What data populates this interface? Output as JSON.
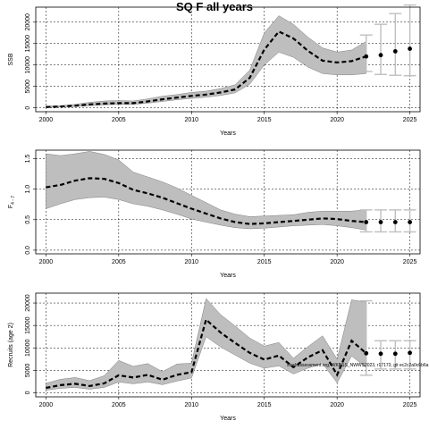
{
  "figure": {
    "title": "SQ F all years",
    "annotation": "stockassessment.org, WKBSS_NWWS2023, r17173, git ec2c2a0c6b6a"
  },
  "chart_data": [
    {
      "id": "ssb",
      "type": "area",
      "xlabel": "Years",
      "ylabel": "SSB",
      "xlim": [
        1999.3,
        2025.7
      ],
      "ylim": [
        -900,
        23500
      ],
      "xticks": [
        2000,
        2005,
        2010,
        2015,
        2020,
        2025
      ],
      "yticks": [
        0,
        5000,
        10000,
        15000,
        20000
      ],
      "grid": true,
      "series": [
        {
          "x": [
            2000,
            2001,
            2002,
            2003,
            2004,
            2005,
            2006,
            2007,
            2008,
            2009,
            2010,
            2011,
            2012,
            2013,
            2014,
            2015,
            2016,
            2017,
            2018,
            2019,
            2020,
            2021,
            2022
          ],
          "values": [
            200,
            300,
            500,
            800,
            1000,
            1100,
            1100,
            1500,
            2000,
            2400,
            2800,
            3100,
            3600,
            4300,
            7000,
            13000,
            16500,
            15000,
            12500,
            10500,
            10000,
            10200,
            11000
          ],
          "lower": [
            100,
            200,
            300,
            500,
            700,
            800,
            800,
            1100,
            1500,
            1900,
            2200,
            2500,
            2900,
            3500,
            5500,
            10000,
            13000,
            11800,
            9500,
            8000,
            7700,
            7700,
            8000
          ],
          "upper": [
            400,
            500,
            800,
            1300,
            1600,
            1700,
            1600,
            2100,
            2700,
            3100,
            3600,
            3900,
            4500,
            5400,
            8800,
            17500,
            21500,
            19500,
            16500,
            14000,
            13000,
            13500,
            15500
          ],
          "median": [
            200,
            300,
            500,
            800,
            1000,
            1100,
            1100,
            1500,
            2000,
            2400,
            2800,
            3100,
            3600,
            4300,
            7000,
            13600,
            17800,
            16200,
            13300,
            11000,
            10600,
            10900,
            12000
          ]
        }
      ],
      "forecast": [
        {
          "x": 2022,
          "value": 12000,
          "low": 8500,
          "high": 17000
        },
        {
          "x": 2023,
          "value": 12300,
          "low": 7800,
          "high": 19500
        },
        {
          "x": 2024,
          "value": 13200,
          "low": 7600,
          "high": 22000
        },
        {
          "x": 2025,
          "value": 13800,
          "low": 7500,
          "high": 24000
        }
      ]
    },
    {
      "id": "fbar",
      "type": "area",
      "xlabel": "Years",
      "ylabel": "F",
      "ylabel_sub": "4 - 7",
      "xlim": [
        1999.3,
        2025.7
      ],
      "ylim": [
        -0.06,
        1.64
      ],
      "xticks": [
        2000,
        2005,
        2010,
        2015,
        2020,
        2025
      ],
      "yticks": [
        0.0,
        0.5,
        1.0,
        1.5
      ],
      "ytick_labels": [
        "0.0",
        "0.5",
        "1.0",
        "1.5"
      ],
      "grid": true,
      "series": [
        {
          "x": [
            2000,
            2001,
            2002,
            2003,
            2004,
            2005,
            2006,
            2007,
            2008,
            2009,
            2010,
            2011,
            2012,
            2013,
            2014,
            2015,
            2016,
            2017,
            2018,
            2019,
            2020,
            2021,
            2022
          ],
          "lower": [
            0.68,
            0.76,
            0.83,
            0.86,
            0.87,
            0.83,
            0.76,
            0.72,
            0.66,
            0.59,
            0.51,
            0.46,
            0.41,
            0.37,
            0.35,
            0.36,
            0.38,
            0.4,
            0.41,
            0.42,
            0.4,
            0.37,
            0.33
          ],
          "upper": [
            1.58,
            1.55,
            1.58,
            1.62,
            1.57,
            1.48,
            1.28,
            1.2,
            1.12,
            1.02,
            0.9,
            0.78,
            0.66,
            0.59,
            0.55,
            0.56,
            0.57,
            0.58,
            0.62,
            0.64,
            0.64,
            0.64,
            0.66
          ],
          "median": [
            1.03,
            1.07,
            1.14,
            1.18,
            1.17,
            1.1,
            0.99,
            0.93,
            0.86,
            0.77,
            0.68,
            0.6,
            0.52,
            0.46,
            0.43,
            0.44,
            0.46,
            0.48,
            0.5,
            0.52,
            0.51,
            0.48,
            0.46
          ]
        }
      ],
      "forecast": [
        {
          "x": 2022,
          "value": 0.46,
          "low": 0.3,
          "high": 0.66
        },
        {
          "x": 2023,
          "value": 0.46,
          "low": 0.3,
          "high": 0.66
        },
        {
          "x": 2024,
          "value": 0.46,
          "low": 0.3,
          "high": 0.66
        },
        {
          "x": 2025,
          "value": 0.46,
          "low": 0.3,
          "high": 0.66
        }
      ]
    },
    {
      "id": "recruits",
      "type": "area",
      "xlabel": "Years",
      "ylabel": "Recruits (age 2)",
      "xlim": [
        1999.3,
        2025.7
      ],
      "ylim": [
        -900,
        22200
      ],
      "xticks": [
        2000,
        2005,
        2010,
        2015,
        2020,
        2025
      ],
      "yticks": [
        0,
        5000,
        10000,
        15000,
        20000
      ],
      "grid": true,
      "series": [
        {
          "x": [
            2000,
            2001,
            2002,
            2003,
            2004,
            2005,
            2006,
            2007,
            2008,
            2009,
            2010,
            2011,
            2012,
            2013,
            2014,
            2015,
            2016,
            2017,
            2018,
            2019,
            2020,
            2021,
            2022
          ],
          "lower": [
            600,
            1000,
            1200,
            800,
            1200,
            2400,
            2000,
            2400,
            1800,
            2600,
            3300,
            12500,
            10200,
            8400,
            6600,
            5500,
            6000,
            4200,
            5500,
            6500,
            2200,
            8200,
            5600
          ],
          "upper": [
            2100,
            3000,
            3400,
            2700,
            3800,
            7200,
            5900,
            6500,
            4700,
            6400,
            6600,
            21000,
            17400,
            14900,
            12200,
            10400,
            11200,
            7700,
            10300,
            12700,
            7500,
            20700,
            20200
          ],
          "median": [
            1100,
            1700,
            2000,
            1500,
            2100,
            3900,
            3400,
            4000,
            2900,
            4000,
            4600,
            16300,
            13400,
            11100,
            8900,
            7400,
            8300,
            5700,
            7900,
            9500,
            4000,
            11600,
            8800
          ]
        }
      ],
      "forecast": [
        {
          "x": 2022,
          "value": 8800,
          "low": 3900,
          "high": 20500
        },
        {
          "x": 2023,
          "value": 8700,
          "low": 5300,
          "high": 11600
        },
        {
          "x": 2024,
          "value": 8700,
          "low": 5300,
          "high": 11600
        },
        {
          "x": 2025,
          "value": 8900,
          "low": 5300,
          "high": 11600
        }
      ]
    }
  ]
}
